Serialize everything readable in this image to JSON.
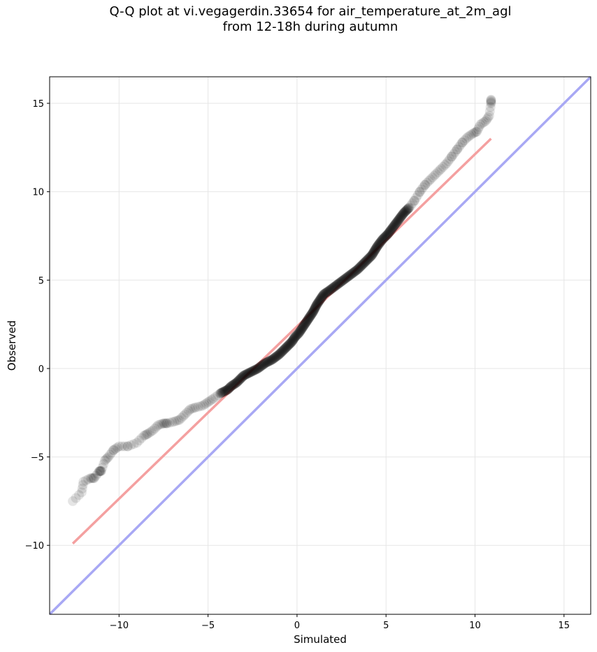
{
  "chart_data": {
    "type": "scatter",
    "title_line1": "Q-Q plot at vi.vegagerdin.33654 for air_temperature_at_2m_agl",
    "title_line2": "from 12-18h during autumn",
    "xlabel": "Simulated",
    "ylabel": "Observed",
    "xlim": [
      -13.9,
      16.5
    ],
    "ylim": [
      -13.9,
      16.5
    ],
    "xticks": [
      -10,
      -5,
      0,
      5,
      10,
      15
    ],
    "yticks": [
      -10,
      -5,
      0,
      5,
      10,
      15
    ],
    "xtick_labels": [
      "−10",
      "−5",
      "0",
      "5",
      "10",
      "15"
    ],
    "ytick_labels": [
      "−10",
      "−5",
      "0",
      "5",
      "10",
      "15"
    ],
    "grid": true,
    "colors": {
      "points": "#000000",
      "fit_line": "#f4a0a0",
      "identity_line": "#a8a8f4",
      "grid": "#e6e6e6"
    },
    "identity_line": {
      "x": [
        -13.9,
        16.5
      ],
      "y": [
        -13.9,
        16.5
      ]
    },
    "fit_line": {
      "x": [
        -12.6,
        10.9
      ],
      "y": [
        -9.9,
        13.0
      ]
    },
    "points": {
      "x": [
        -12.6,
        -12.1,
        -12.0,
        -11.6,
        -11.4,
        -11.1,
        -11.0,
        -10.8,
        -10.6,
        -10.3,
        -10.0,
        -9.5,
        -9.0,
        -8.6,
        -8.4,
        -8.1,
        -7.8,
        -7.5,
        -7.3,
        -6.9,
        -6.6,
        -6.3,
        -6.0,
        -5.7,
        -5.3,
        -5.0,
        -4.7,
        -4.3,
        -3.9,
        -3.7,
        -3.4,
        -3.2,
        -3.0,
        -2.6,
        -2.2,
        -1.8,
        -1.4,
        -1.0,
        -0.6,
        -0.3,
        -0.1,
        0.1,
        0.3,
        0.5,
        0.7,
        0.9,
        1.1,
        1.3,
        1.5,
        1.8,
        2.2,
        2.6,
        3.0,
        3.4,
        3.8,
        4.2,
        4.5,
        4.8,
        5.1,
        5.4,
        5.7,
        6.0,
        6.3,
        6.6,
        6.9,
        7.2,
        7.5,
        7.8,
        8.1,
        8.4,
        8.7,
        9.0,
        9.3,
        9.6,
        9.9,
        10.1,
        10.3,
        10.6,
        10.8,
        10.9,
        10.9
      ],
      "y": [
        -7.5,
        -7.0,
        -6.4,
        -6.2,
        -6.2,
        -5.8,
        -5.8,
        -5.2,
        -5.0,
        -4.6,
        -4.4,
        -4.4,
        -4.2,
        -3.8,
        -3.7,
        -3.5,
        -3.2,
        -3.1,
        -3.1,
        -3.0,
        -2.9,
        -2.6,
        -2.3,
        -2.2,
        -2.1,
        -1.9,
        -1.7,
        -1.4,
        -1.2,
        -1.0,
        -0.8,
        -0.6,
        -0.4,
        -0.2,
        0.0,
        0.3,
        0.5,
        0.8,
        1.2,
        1.5,
        1.8,
        2.0,
        2.3,
        2.6,
        2.9,
        3.2,
        3.6,
        3.9,
        4.2,
        4.4,
        4.7,
        5.0,
        5.3,
        5.6,
        6.0,
        6.4,
        6.9,
        7.3,
        7.6,
        8.0,
        8.4,
        8.8,
        9.1,
        9.5,
        10.0,
        10.4,
        10.7,
        11.0,
        11.3,
        11.6,
        12.0,
        12.4,
        12.8,
        13.1,
        13.3,
        13.4,
        13.8,
        14.0,
        14.3,
        15.0,
        15.2
      ]
    }
  }
}
